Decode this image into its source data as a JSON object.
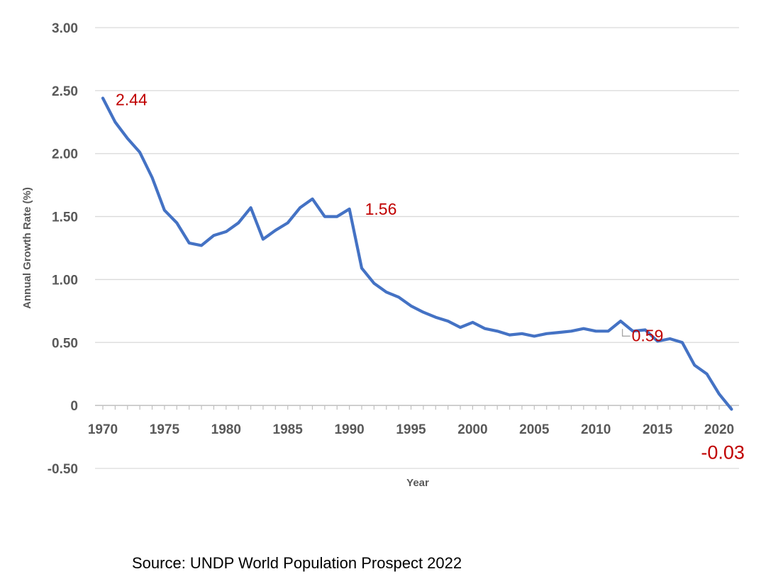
{
  "chart_data": {
    "type": "line",
    "title": "",
    "xlabel": "Year",
    "ylabel": "Annual Growth Rate (%)",
    "ylim": [
      -0.5,
      3.0
    ],
    "xlim": [
      1969.5,
      2021
    ],
    "y_ticks": [
      {
        "value": 3.0,
        "label": "3.00"
      },
      {
        "value": 2.5,
        "label": "2.50"
      },
      {
        "value": 2.0,
        "label": "2.00"
      },
      {
        "value": 1.5,
        "label": "1.50"
      },
      {
        "value": 1.0,
        "label": "1.00"
      },
      {
        "value": 0.5,
        "label": "0.50"
      },
      {
        "value": 0.0,
        "label": "0"
      },
      {
        "value": -0.5,
        "label": "-0.50"
      }
    ],
    "x_ticks": [
      {
        "value": 1970,
        "label": "1970"
      },
      {
        "value": 1975,
        "label": "1975"
      },
      {
        "value": 1980,
        "label": "1980"
      },
      {
        "value": 1985,
        "label": "1985"
      },
      {
        "value": 1990,
        "label": "1990"
      },
      {
        "value": 1995,
        "label": "1995"
      },
      {
        "value": 2000,
        "label": "2000"
      },
      {
        "value": 2005,
        "label": "2005"
      },
      {
        "value": 2010,
        "label": "2010"
      },
      {
        "value": 2015,
        "label": "2015"
      },
      {
        "value": 2020,
        "label": "2020"
      }
    ],
    "grid": true,
    "legend": "none",
    "series": [
      {
        "name": "Annual Growth Rate",
        "color": "#4472c4",
        "x": [
          1970,
          1971,
          1972,
          1973,
          1974,
          1975,
          1976,
          1977,
          1978,
          1979,
          1980,
          1981,
          1982,
          1983,
          1984,
          1985,
          1986,
          1987,
          1988,
          1989,
          1990,
          1991,
          1992,
          1993,
          1994,
          1995,
          1996,
          1997,
          1998,
          1999,
          2000,
          2001,
          2002,
          2003,
          2004,
          2005,
          2006,
          2007,
          2008,
          2009,
          2010,
          2011,
          2012,
          2013,
          2014,
          2015,
          2016,
          2017,
          2018,
          2019,
          2020,
          2021
        ],
        "values": [
          2.44,
          2.25,
          2.12,
          2.01,
          1.81,
          1.55,
          1.45,
          1.29,
          1.27,
          1.35,
          1.38,
          1.45,
          1.57,
          1.32,
          1.39,
          1.45,
          1.57,
          1.64,
          1.5,
          1.5,
          1.56,
          1.09,
          0.97,
          0.9,
          0.86,
          0.79,
          0.74,
          0.7,
          0.67,
          0.62,
          0.66,
          0.61,
          0.59,
          0.56,
          0.57,
          0.55,
          0.57,
          0.58,
          0.59,
          0.61,
          0.59,
          0.59,
          0.67,
          0.59,
          0.6,
          0.51,
          0.53,
          0.5,
          0.32,
          0.25,
          0.09,
          -0.03
        ]
      }
    ],
    "annotations": [
      {
        "label": "2.44",
        "x": 1970,
        "y": 2.44,
        "size": "normal"
      },
      {
        "label": "1.56",
        "x": 1990,
        "y": 1.56,
        "size": "normal"
      },
      {
        "label": "0.59",
        "x": 2011,
        "y": 0.59,
        "size": "normal",
        "leader": true
      },
      {
        "label": "-0.03",
        "x": 2021,
        "y": -0.03,
        "size": "big"
      }
    ]
  },
  "source": "Source: UNDP World Population Prospect 2022"
}
